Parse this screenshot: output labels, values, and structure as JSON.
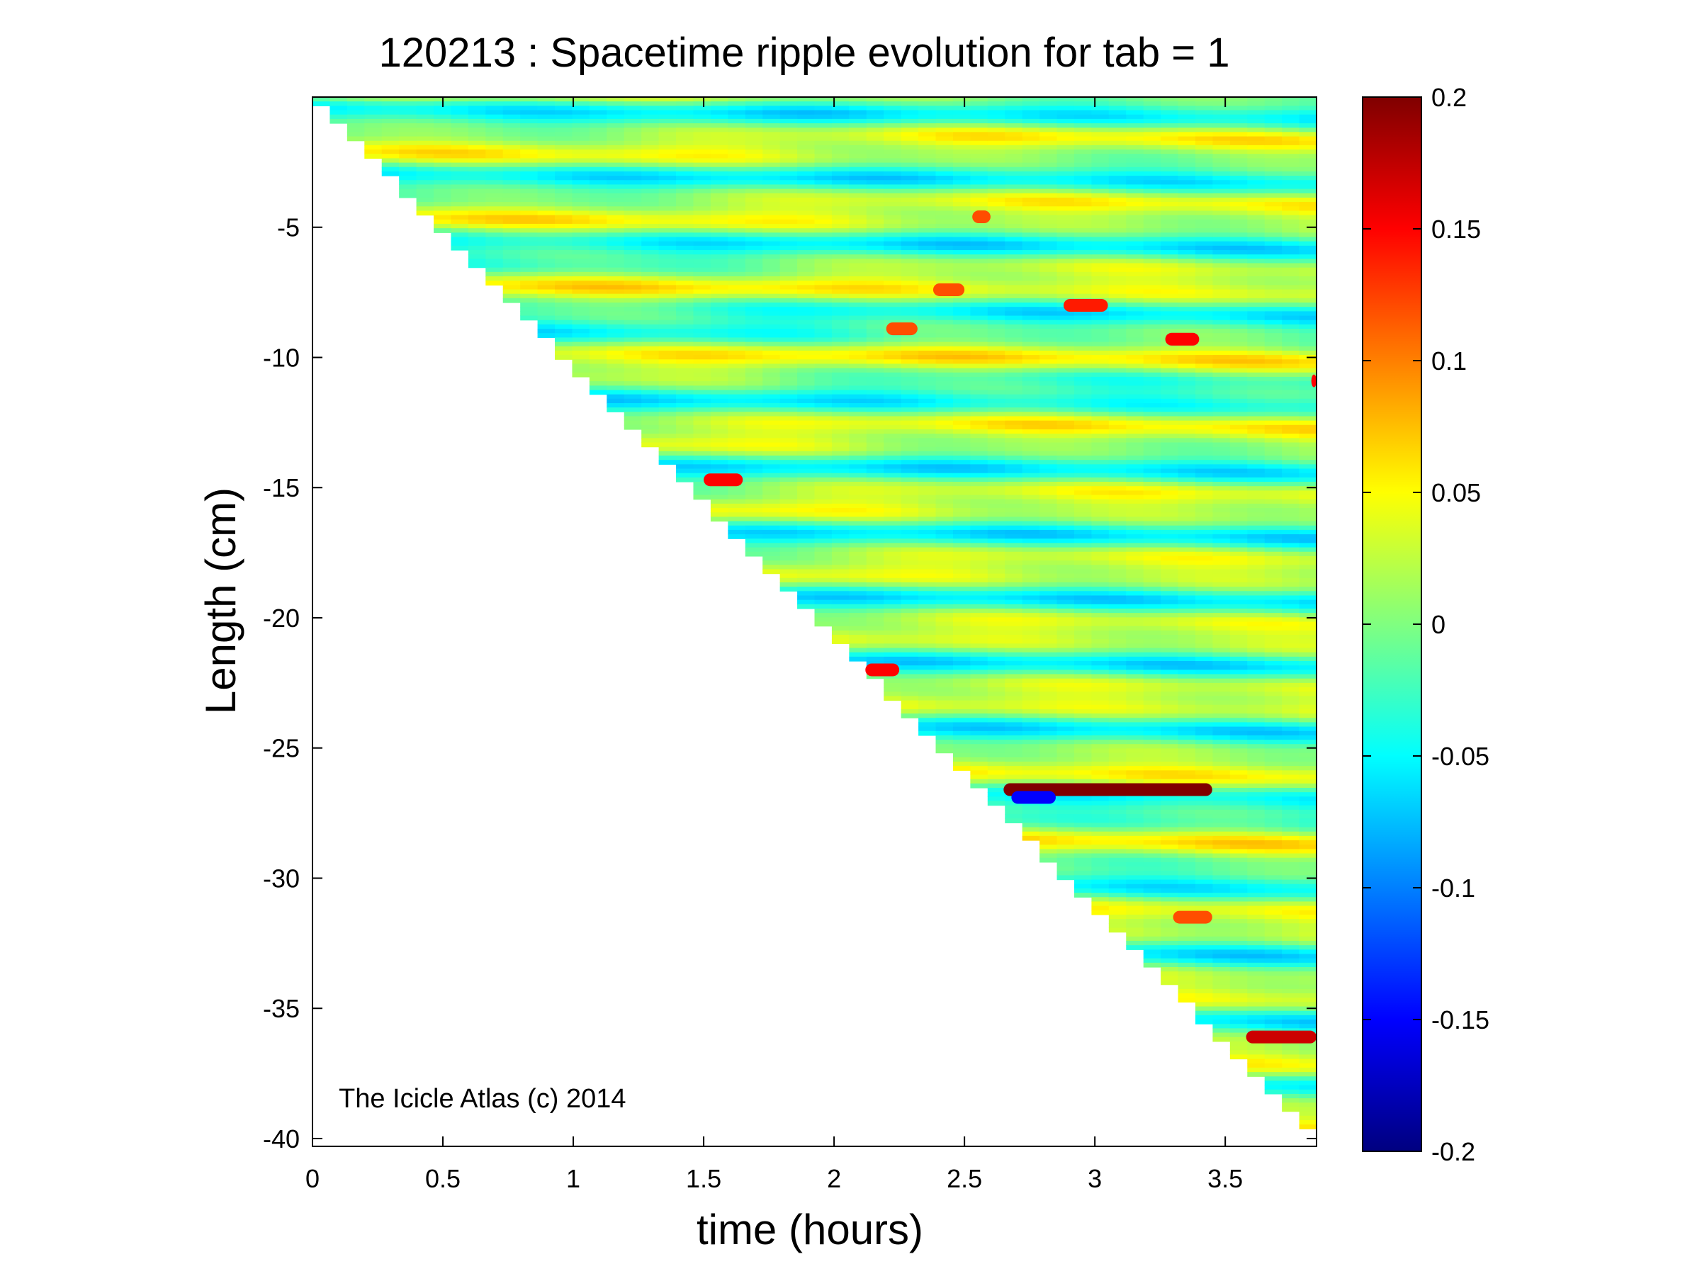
{
  "chart_data": {
    "type": "heatmap",
    "title": "120213 : Spacetime ripple evolution for tab = 1",
    "xlabel": "time (hours)",
    "ylabel": "Length (cm)",
    "xlim": [
      0,
      3.85
    ],
    "ylim": [
      -40.3,
      0
    ],
    "xticks": [
      0,
      0.5,
      1,
      1.5,
      2,
      2.5,
      3,
      3.5
    ],
    "xtick_labels": [
      "0",
      "0.5",
      "1",
      "1.5",
      "2",
      "2.5",
      "3",
      "3.5"
    ],
    "yticks": [
      -5,
      -10,
      -15,
      -20,
      -25,
      -30,
      -35,
      -40
    ],
    "ytick_labels": [
      "-5",
      "-10",
      "-15",
      "-20",
      "-25",
      "-30",
      "-35",
      "-40"
    ],
    "colormap": "jet",
    "clim": [
      -0.2,
      0.2
    ],
    "colorbar_ticks": [
      0.2,
      0.15,
      0.1,
      0.05,
      0,
      -0.05,
      -0.1,
      -0.15,
      -0.2
    ],
    "colorbar_tick_labels": [
      "0.2",
      "0.15",
      "0.1",
      "0.05",
      "0",
      "-0.05",
      "-0.1",
      "-0.15",
      "-0.2"
    ],
    "growth_front": {
      "description_source": "icicle tip position vs time",
      "points": [
        [
          0,
          0
        ],
        [
          3.85,
          -40
        ]
      ]
    },
    "highlight_bands": [
      {
        "t_start": 2.65,
        "t_end": 3.45,
        "length": -26.6,
        "value": 0.2
      },
      {
        "t_start": 2.68,
        "t_end": 2.85,
        "length": -26.9,
        "value": -0.15
      },
      {
        "t_start": 3.58,
        "t_end": 3.85,
        "length": -36.1,
        "value": 0.17
      },
      {
        "t_start": 2.12,
        "t_end": 2.25,
        "length": -22.0,
        "value": 0.15
      },
      {
        "t_start": 1.5,
        "t_end": 1.65,
        "length": -14.7,
        "value": 0.15
      },
      {
        "t_start": 2.88,
        "t_end": 3.05,
        "length": -8.0,
        "value": 0.14
      },
      {
        "t_start": 3.27,
        "t_end": 3.4,
        "length": -9.3,
        "value": 0.15
      },
      {
        "t_start": 3.83,
        "t_end": 3.85,
        "length": -10.9,
        "value": 0.15
      },
      {
        "t_start": 2.2,
        "t_end": 2.32,
        "length": -8.9,
        "value": 0.12
      },
      {
        "t_start": 2.38,
        "t_end": 2.5,
        "length": -7.4,
        "value": 0.12
      },
      {
        "t_start": 2.53,
        "t_end": 2.6,
        "length": -4.6,
        "value": 0.12
      },
      {
        "t_start": 3.3,
        "t_end": 3.45,
        "length": -31.5,
        "value": 0.12
      }
    ]
  },
  "watermark": "The Icicle Atlas (c) 2014"
}
